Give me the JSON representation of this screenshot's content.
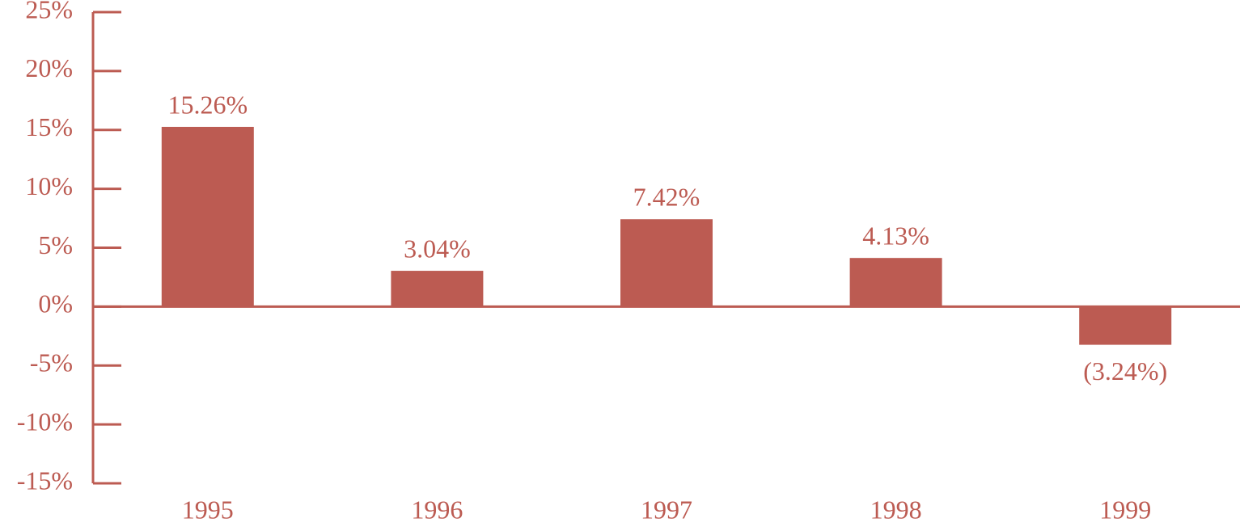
{
  "chart_data": {
    "type": "bar",
    "categories": [
      "1995",
      "1996",
      "1997",
      "1998",
      "1999"
    ],
    "values": [
      15.26,
      3.04,
      7.42,
      4.13,
      -3.24
    ],
    "value_labels": [
      "15.26%",
      "3.04%",
      "7.42%",
      "4.13%",
      "(3.24%)"
    ],
    "color": "#bc5b52",
    "ylim": [
      -15,
      25
    ],
    "yticks": [
      {
        "value": -15,
        "label": "-15%"
      },
      {
        "value": -10,
        "label": "-10%"
      },
      {
        "value": -5,
        "label": "-5%"
      },
      {
        "value": 0,
        "label": "0%"
      },
      {
        "value": 5,
        "label": "5%"
      },
      {
        "value": 10,
        "label": "10%"
      },
      {
        "value": 15,
        "label": "15%"
      },
      {
        "value": 20,
        "label": "20%"
      },
      {
        "value": 25,
        "label": "25%"
      }
    ]
  }
}
